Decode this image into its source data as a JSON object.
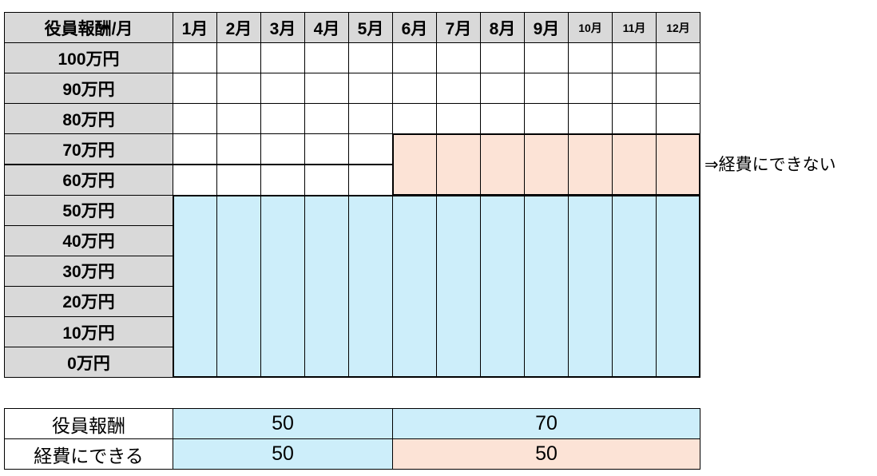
{
  "table": {
    "header": [
      "役員報酬/月",
      "1月",
      "2月",
      "3月",
      "4月",
      "5月",
      "6月",
      "7月",
      "8月",
      "9月",
      "10月",
      "11月",
      "12月"
    ],
    "row_labels": [
      "100万円",
      "90万円",
      "80万円",
      "70万円",
      "60万円",
      "50万円",
      "40万円",
      "30万円",
      "20万円",
      "10万円",
      "0万円"
    ],
    "annotation": "⇒経費にできない"
  },
  "summary": {
    "rows": [
      [
        "役員報酬",
        50,
        70
      ],
      [
        "経費にできる",
        50,
        50
      ]
    ]
  }
}
